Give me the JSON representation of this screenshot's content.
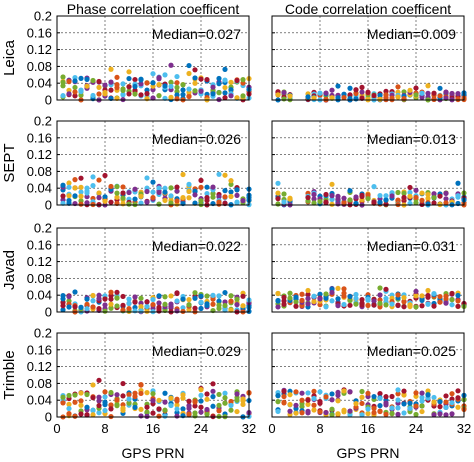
{
  "figure": {
    "row_labels": [
      "Leica",
      "SEPT",
      "Javad",
      "Trimble"
    ],
    "column_titles": [
      "Phase correlation coefficent",
      "Code  correlation coefficent"
    ],
    "xlabel": "GPS PRN",
    "x_ticks": [
      0,
      8,
      16,
      24,
      32
    ],
    "y_ticks": [
      "0",
      "0.04",
      "0.08",
      "0.12",
      "0.16",
      "0.2"
    ],
    "marker_colors": [
      "#0072BD",
      "#D95319",
      "#EDB120",
      "#7E2F8E",
      "#77AC30",
      "#4DBEEE",
      "#A2142F"
    ]
  },
  "chart_data": [
    {
      "type": "scatter",
      "receiver": "Leica",
      "metric": "Phase correlation coefficent",
      "median_label": "Median=0.027",
      "median": 0.027,
      "xlim": [
        0,
        32
      ],
      "ylim": [
        0,
        0.2
      ],
      "grid": true,
      "missing_prn": [],
      "typical_range": [
        0.0,
        0.055
      ],
      "outlier_max": 0.085
    },
    {
      "type": "scatter",
      "receiver": "Leica",
      "metric": "Code  correlation coefficent",
      "median_label": "Median=0.009",
      "median": 0.009,
      "xlim": [
        0,
        32
      ],
      "ylim": [
        0,
        0.2
      ],
      "grid": true,
      "missing_prn": [
        4,
        5
      ],
      "typical_range": [
        0.0,
        0.02
      ],
      "outlier_max": 0.035
    },
    {
      "type": "scatter",
      "receiver": "SEPT",
      "metric": "Phase correlation coefficent",
      "median_label": "Median=0.026",
      "median": 0.026,
      "xlim": [
        0,
        32
      ],
      "ylim": [
        0,
        0.2
      ],
      "grid": true,
      "missing_prn": [],
      "typical_range": [
        0.0,
        0.045
      ],
      "outlier_max": 0.075
    },
    {
      "type": "scatter",
      "receiver": "SEPT",
      "metric": "Code  correlation coefficent",
      "median_label": "Median=0.013",
      "median": 0.013,
      "xlim": [
        0,
        32
      ],
      "ylim": [
        0,
        0.2
      ],
      "grid": true,
      "missing_prn": [
        4,
        5
      ],
      "typical_range": [
        0.0,
        0.03
      ],
      "outlier_max": 0.052
    },
    {
      "type": "scatter",
      "receiver": "Javad",
      "metric": "Phase correlation coefficent",
      "median_label": "Median=0.022",
      "median": 0.022,
      "xlim": [
        0,
        32
      ],
      "ylim": [
        0,
        0.2
      ],
      "grid": true,
      "missing_prn": [],
      "typical_range": [
        0.0,
        0.04
      ],
      "outlier_max": 0.048
    },
    {
      "type": "scatter",
      "receiver": "Javad",
      "metric": "Code  correlation coefficent",
      "median_label": "Median=0.031",
      "median": 0.031,
      "xlim": [
        0,
        32
      ],
      "ylim": [
        0,
        0.2
      ],
      "grid": true,
      "missing_prn": [],
      "typical_range": [
        0.012,
        0.045
      ],
      "outlier_max": 0.058
    },
    {
      "type": "scatter",
      "receiver": "Trimble",
      "metric": "Phase correlation coefficent",
      "median_label": "Median=0.029",
      "median": 0.029,
      "xlim": [
        0,
        32
      ],
      "ylim": [
        0,
        0.2
      ],
      "grid": true,
      "missing_prn": [],
      "typical_range": [
        0.0,
        0.06
      ],
      "outlier_max": 0.09
    },
    {
      "type": "scatter",
      "receiver": "Trimble",
      "metric": "Code  correlation coefficent",
      "median_label": "Median=0.025",
      "median": 0.025,
      "xlim": [
        0,
        32
      ],
      "ylim": [
        0,
        0.2
      ],
      "grid": true,
      "missing_prn": [],
      "typical_range": [
        0.005,
        0.06
      ],
      "outlier_max": 0.065
    }
  ]
}
